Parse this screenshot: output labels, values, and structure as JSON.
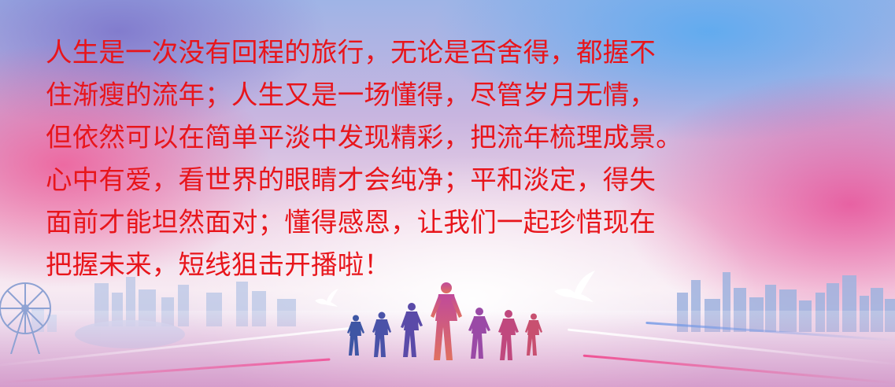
{
  "banner": {
    "quote_lines": [
      "人生是一次没有回程的旅行，无论是否舍得，都握不",
      "住渐瘦的流年；人生又是一场懂得，尽管岁月无情，",
      "但依然可以在简单平淡中发现精彩，把流年梳理成景。",
      "心中有爱，看世界的眼睛才会纯净；平和淡定，得失",
      "面前才能坦然面对；懂得感恩，让我们一起珍惜现在",
      "把握未来，短线狙击开播啦！"
    ],
    "text_color": "#e8151b",
    "illustration_icons": [
      "ferris-wheel-icon",
      "dove-icon",
      "runner-icon",
      "city-skyline-icon"
    ]
  }
}
